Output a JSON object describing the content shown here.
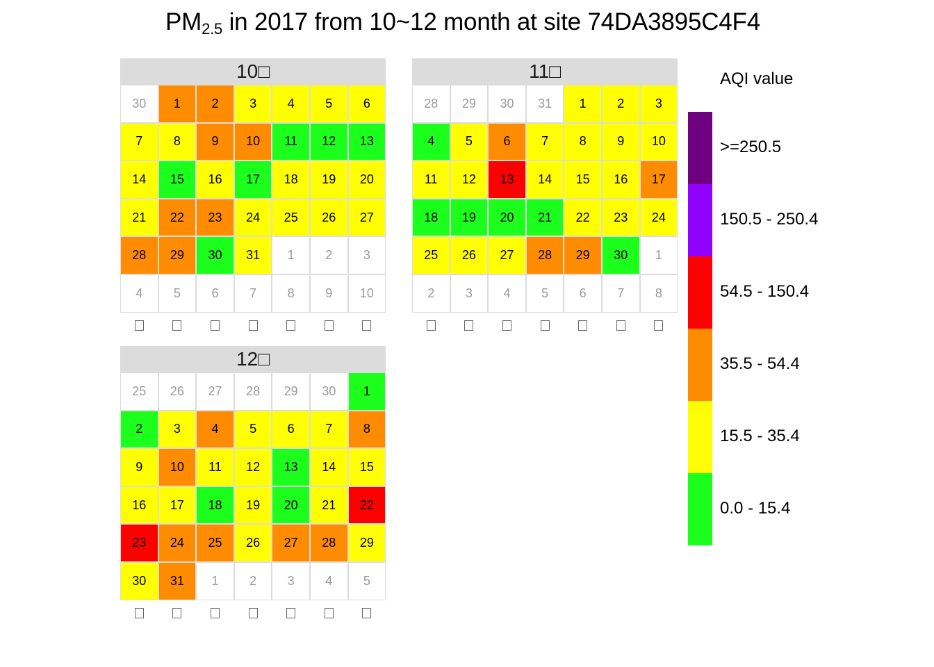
{
  "chart_data": {
    "type": "heatmap",
    "title_main": "PM",
    "title_sub": "2.5",
    "title_rest": " in 2017 from 10~12 month at site 74DA3895C4F4",
    "weekday_labels": [
      "□",
      "□",
      "□",
      "□",
      "□",
      "□",
      "□"
    ],
    "legend": {
      "title": "AQI value",
      "levels": [
        {
          "label": ">=250.5",
          "color": "#6F007F"
        },
        {
          "label": "150.5 - 250.4",
          "color": "#8F00FF"
        },
        {
          "label": "54.5 - 150.4",
          "color": "#FF0000"
        },
        {
          "label": "35.5 - 54.4",
          "color": "#FF8C00"
        },
        {
          "label": "15.5 - 35.4",
          "color": "#FFFF00"
        },
        {
          "label": "0.0 - 15.4",
          "color": "#1CFF1C"
        }
      ]
    },
    "panels": [
      {
        "label": "10□",
        "leading_days": [
          "30"
        ],
        "days_in_month": 31,
        "trailing_days": [
          "1",
          "2",
          "3",
          "4",
          "5",
          "6",
          "7",
          "8",
          "9",
          "10"
        ],
        "aqi_level": [
          "35.5 - 54.4",
          "35.5 - 54.4",
          "15.5 - 35.4",
          "15.5 - 35.4",
          "15.5 - 35.4",
          "15.5 - 35.4",
          "15.5 - 35.4",
          "15.5 - 35.4",
          "35.5 - 54.4",
          "35.5 - 54.4",
          "0.0 - 15.4",
          "0.0 - 15.4",
          "0.0 - 15.4",
          "15.5 - 35.4",
          "0.0 - 15.4",
          "15.5 - 35.4",
          "0.0 - 15.4",
          "15.5 - 35.4",
          "15.5 - 35.4",
          "15.5 - 35.4",
          "15.5 - 35.4",
          "35.5 - 54.4",
          "35.5 - 54.4",
          "15.5 - 35.4",
          "15.5 - 35.4",
          "15.5 - 35.4",
          "15.5 - 35.4",
          "35.5 - 54.4",
          "35.5 - 54.4",
          "0.0 - 15.4",
          "15.5 - 35.4"
        ]
      },
      {
        "label": "11□",
        "leading_days": [
          "28",
          "29",
          "30",
          "31"
        ],
        "days_in_month": 30,
        "trailing_days": [
          "1",
          "2",
          "3",
          "4",
          "5",
          "6",
          "7",
          "8"
        ],
        "aqi_level": [
          "15.5 - 35.4",
          "15.5 - 35.4",
          "15.5 - 35.4",
          "0.0 - 15.4",
          "15.5 - 35.4",
          "35.5 - 54.4",
          "15.5 - 35.4",
          "15.5 - 35.4",
          "15.5 - 35.4",
          "15.5 - 35.4",
          "15.5 - 35.4",
          "15.5 - 35.4",
          "54.5 - 150.4",
          "15.5 - 35.4",
          "15.5 - 35.4",
          "15.5 - 35.4",
          "35.5 - 54.4",
          "0.0 - 15.4",
          "0.0 - 15.4",
          "0.0 - 15.4",
          "0.0 - 15.4",
          "15.5 - 35.4",
          "15.5 - 35.4",
          "15.5 - 35.4",
          "15.5 - 35.4",
          "15.5 - 35.4",
          "15.5 - 35.4",
          "35.5 - 54.4",
          "35.5 - 54.4",
          "0.0 - 15.4"
        ]
      },
      {
        "label": "12□",
        "leading_days": [
          "25",
          "26",
          "27",
          "28",
          "29",
          "30"
        ],
        "days_in_month": 31,
        "trailing_days": [
          "1",
          "2",
          "3",
          "4",
          "5"
        ],
        "aqi_level": [
          "0.0 - 15.4",
          "0.0 - 15.4",
          "15.5 - 35.4",
          "35.5 - 54.4",
          "15.5 - 35.4",
          "15.5 - 35.4",
          "15.5 - 35.4",
          "35.5 - 54.4",
          "15.5 - 35.4",
          "35.5 - 54.4",
          "15.5 - 35.4",
          "15.5 - 35.4",
          "0.0 - 15.4",
          "15.5 - 35.4",
          "15.5 - 35.4",
          "15.5 - 35.4",
          "15.5 - 35.4",
          "0.0 - 15.4",
          "15.5 - 35.4",
          "0.0 - 15.4",
          "15.5 - 35.4",
          "54.5 - 150.4",
          "54.5 - 150.4",
          "35.5 - 54.4",
          "35.5 - 54.4",
          "15.5 - 35.4",
          "35.5 - 54.4",
          "35.5 - 54.4",
          "15.5 - 35.4",
          "15.5 - 35.4",
          "35.5 - 54.4"
        ]
      }
    ]
  }
}
